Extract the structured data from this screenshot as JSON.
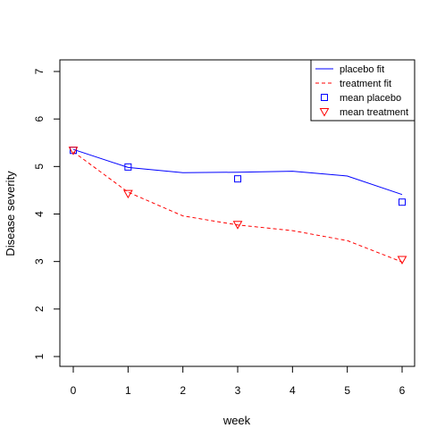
{
  "chart_data": {
    "type": "line",
    "title": "",
    "xlabel": "week",
    "ylabel": "Disease severity",
    "xlim": [
      0,
      6
    ],
    "ylim": [
      1,
      7
    ],
    "x_ticks": [
      0,
      1,
      2,
      3,
      4,
      5,
      6
    ],
    "y_ticks": [
      1,
      2,
      3,
      4,
      5,
      6,
      7
    ],
    "grid": false,
    "legend_position": "top-right",
    "series": [
      {
        "name": "placebo fit",
        "kind": "line",
        "line_style": "solid",
        "color": "#0000ff",
        "x": [
          0,
          1,
          2,
          3,
          4,
          5,
          6
        ],
        "y": [
          5.36,
          4.98,
          4.87,
          4.88,
          4.9,
          4.8,
          4.41
        ]
      },
      {
        "name": "treatment fit",
        "kind": "line",
        "line_style": "dashed",
        "color": "#ff0000",
        "x": [
          0,
          1,
          2,
          3,
          4,
          5,
          6
        ],
        "y": [
          5.31,
          4.46,
          3.96,
          3.77,
          3.65,
          3.44,
          2.99
        ]
      },
      {
        "name": "mean placebo",
        "kind": "points",
        "marker": "square",
        "color": "#0000ff",
        "x": [
          0,
          1,
          3,
          6
        ],
        "y": [
          5.34,
          4.99,
          4.74,
          4.25
        ]
      },
      {
        "name": "mean treatment",
        "kind": "points",
        "marker": "triangle-down",
        "color": "#ff0000",
        "x": [
          0,
          1,
          3,
          6
        ],
        "y": [
          5.34,
          4.43,
          3.78,
          3.04
        ]
      }
    ]
  }
}
